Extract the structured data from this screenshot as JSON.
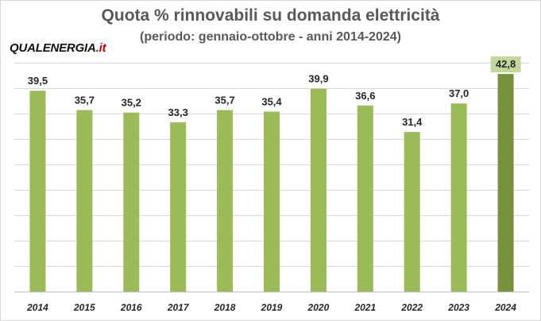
{
  "chart_data": {
    "type": "bar",
    "title": "Quota % rinnovabili su domanda elettricità",
    "subtitle": "(periodo: gennaio-ottobre - anni 2014-2024)",
    "categories": [
      "2014",
      "2015",
      "2016",
      "2017",
      "2018",
      "2019",
      "2020",
      "2021",
      "2022",
      "2023",
      "2024"
    ],
    "values": [
      39.5,
      35.7,
      35.2,
      33.3,
      35.7,
      35.4,
      39.9,
      36.6,
      31.4,
      37.0,
      42.8
    ],
    "value_labels": [
      "39,5",
      "35,7",
      "35,2",
      "33,3",
      "35,7",
      "35,4",
      "39,9",
      "36,6",
      "31,4",
      "37,0",
      "42,8"
    ],
    "ylim": [
      0,
      45
    ],
    "grid": true,
    "colors": {
      "bar": "#9bbb59",
      "highlight_bar": "#76923c",
      "highlight_label_bg": "#c4d79b",
      "grid": "#d9d9d9",
      "title": "#595959"
    },
    "highlight_index": 10
  },
  "logo": {
    "brand": "QUALENERGIA",
    "tld": ".it"
  }
}
